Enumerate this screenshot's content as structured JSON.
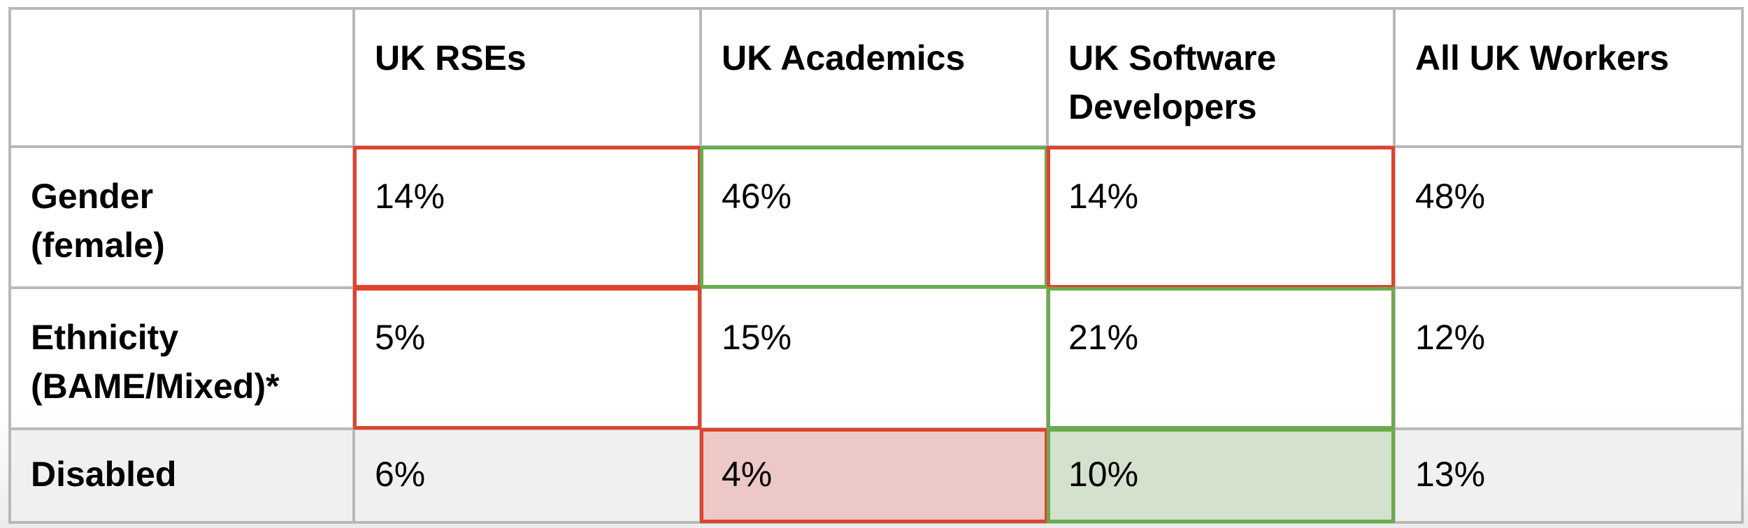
{
  "chart_data": {
    "type": "table",
    "columns": [
      "",
      "UK RSEs",
      "UK Academics",
      "UK Software Developers",
      "All UK Workers"
    ],
    "header_display": [
      "",
      "UK RSEs",
      "UK Academics",
      "UK Software\nDevelopers",
      "All UK Workers"
    ],
    "rows": [
      {
        "label": "Gender (female)",
        "label_display": "Gender\n(female)",
        "values": [
          "14%",
          "46%",
          "14%",
          "48%"
        ],
        "highlight": [
          "red",
          "green",
          "red",
          "none"
        ]
      },
      {
        "label": "Ethnicity (BAME/Mixed)*",
        "label_display": "Ethnicity\n(BAME/Mixed)*",
        "values": [
          "5%",
          "15%",
          "21%",
          "12%"
        ],
        "highlight": [
          "red",
          "none",
          "green",
          "none"
        ]
      },
      {
        "label": "Disabled",
        "label_display": "Disabled",
        "values": [
          "6%",
          "4%",
          "10%",
          "13%"
        ],
        "highlight": [
          "none",
          "red",
          "green",
          "none"
        ]
      }
    ],
    "colors": {
      "red_fill": "#f4d5d3",
      "red_border": "#e0432f",
      "green_fill": "#dfe9d8",
      "green_border": "#6aab4f",
      "grid": "#b8b8b8"
    }
  }
}
